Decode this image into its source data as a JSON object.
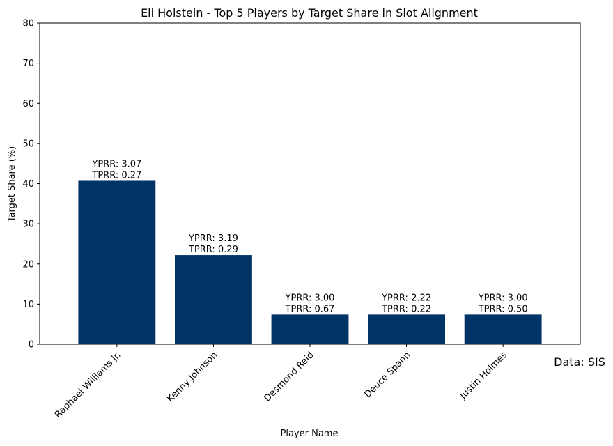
{
  "chart_data": {
    "type": "bar",
    "title": "Eli Holstein - Top 5 Players by Target Share in Slot Alignment",
    "xlabel": "Player Name",
    "ylabel": "Target Share (%)",
    "ylim": [
      0,
      80
    ],
    "yticks": [
      "0",
      "10",
      "20",
      "30",
      "40",
      "50",
      "60",
      "70",
      "80"
    ],
    "categories": [
      "Raphael Williams Jr.",
      "Kenny Johnson",
      "Desmond Reid",
      "Deuce Spann",
      "Justin Holmes"
    ],
    "values": [
      40.7,
      22.2,
      7.4,
      7.4,
      7.4
    ],
    "data_labels": [
      [
        "YPRR: 3.07",
        "TPRR: 0.27"
      ],
      [
        "YPRR: 3.19",
        "TPRR: 0.29"
      ],
      [
        "YPRR: 3.00",
        "TPRR: 0.67"
      ],
      [
        "YPRR: 2.22",
        "TPRR: 0.22"
      ],
      [
        "YPRR: 3.00",
        "TPRR: 0.50"
      ]
    ],
    "bar_color": "#003366",
    "grid": false,
    "legend": "none",
    "annotation": "Data: SIS"
  }
}
